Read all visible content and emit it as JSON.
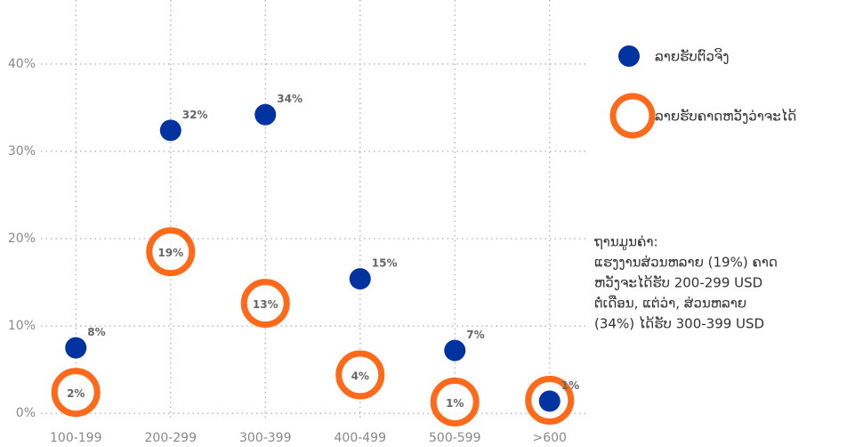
{
  "chart_data": {
    "type": "dot",
    "categories": [
      "100-199",
      "200-299",
      "300-399",
      "400-499",
      "500-599",
      ">600"
    ],
    "series": [
      {
        "name": "ລາຍຮັບຕົວຈິງ",
        "color": "#0033a0",
        "values": [
          7.5,
          32.4,
          34.2,
          15.4,
          7.2,
          1.4
        ],
        "value_labels": [
          "8%",
          "32%",
          "34%",
          "15%",
          "7%",
          "1%"
        ]
      },
      {
        "name": "ລາຍຮັບຄາດຫວັງວ່າຈະໄດ້",
        "color": "#ff6a1a",
        "values": [
          2.4,
          18.5,
          12.6,
          4.4,
          1.3,
          1.5
        ],
        "value_labels": [
          "2%",
          "19%",
          "13%",
          "4%",
          "1%",
          null
        ]
      }
    ],
    "ylim": [
      -1,
      46
    ],
    "yticks": [
      {
        "value": 0,
        "label": "0%"
      },
      {
        "value": 10,
        "label": "10%"
      },
      {
        "value": 20,
        "label": "20%"
      },
      {
        "value": 30,
        "label": "30%"
      },
      {
        "value": 40,
        "label": "40%"
      }
    ],
    "grid": true,
    "legend": "right",
    "annotation": [
      "ຖານມູນຄ່າ:",
      "ແຮງງານສ່ວນຫລາຍ (19%) ຄາດ",
      "ຫວັງຈະໄດ້ຮັບ 200-299 USD",
      "ຕໍ່ເດືອນ, ແຕ່ວ່າ, ສ່ວນຫລາຍ",
      "(34%) ໄດ້ຮັບ 300-399 USD"
    ]
  }
}
